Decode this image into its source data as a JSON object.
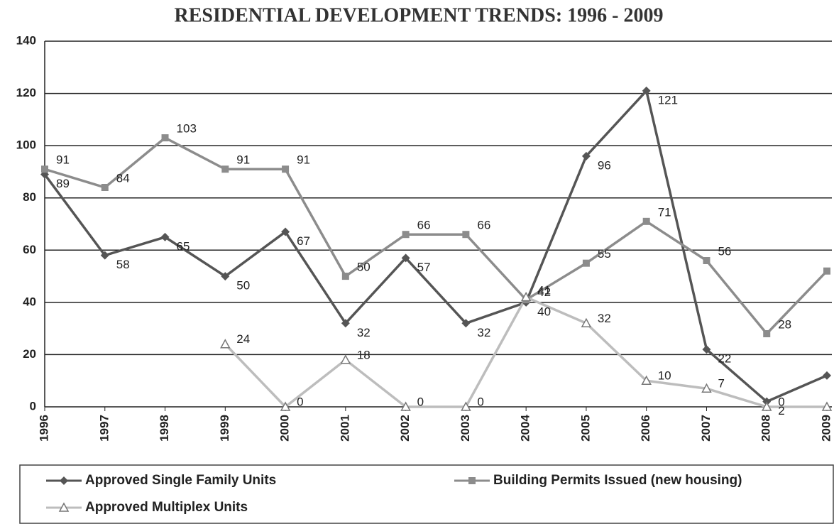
{
  "chart_data": {
    "type": "line",
    "title": "RESIDENTIAL DEVELOPMENT TRENDS:  1996 - 2009",
    "categories": [
      "1996",
      "1997",
      "1998",
      "1999",
      "2000",
      "2001",
      "2002",
      "2003",
      "2004",
      "2005",
      "2006",
      "2007",
      "2008",
      "2009"
    ],
    "series": [
      {
        "name": "Approved Single Family Units",
        "color": "#555555",
        "marker": "diamond",
        "values": [
          89,
          58,
          65,
          50,
          67,
          32,
          57,
          32,
          40,
          96,
          121,
          22,
          2,
          12
        ]
      },
      {
        "name": "Building Permits Issued (new housing)",
        "color": "#8c8c8c",
        "marker": "square",
        "values": [
          91,
          84,
          103,
          91,
          91,
          50,
          66,
          66,
          41,
          55,
          71,
          56,
          28,
          52
        ]
      },
      {
        "name": "Approved Multiplex Units",
        "color": "#bdbdbd",
        "marker": "triangle",
        "values": [
          null,
          null,
          null,
          24,
          0,
          18,
          0,
          0,
          42,
          32,
          10,
          7,
          0,
          0
        ]
      }
    ],
    "ylim": [
      0,
      140
    ],
    "yticks": [
      0,
      20,
      40,
      60,
      80,
      100,
      120,
      140
    ],
    "grid": true,
    "legend": "bottom"
  }
}
